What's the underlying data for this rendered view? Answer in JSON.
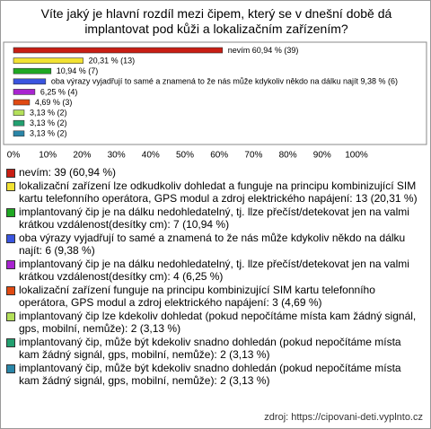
{
  "chart_data": {
    "type": "bar",
    "orientation": "horizontal",
    "title": "Víte jaký je hlavní rozdíl mezi čipem, který se v dnešní době dá implantovat pod kůži a lokalizačním zařízením?",
    "categories": [
      "nevím: 39 (60,94 %)",
      "lokalizační zařízení lze odkudkoliv dohledat a funguje na principu kombinizující SIM kartu telefonního operátora, GPS modul a zdroj elektrického napájení: 13 (20,31 %)",
      " implantovaný čip je na dálku nedohledatelný, tj. llze přečíst/detekovat jen na valmi krátkou vzdálenost(desítky cm): 7 (10,94 %)",
      "oba výrazy vyjadřují to samé a znamená to že nás může kdykoliv někdo na dálku najít: 6 (9,38 %)",
      "implantovaný čip je na dálku nedohledatelný, tj. llze přečíst/detekovat jen na valmi krátkou vzdálenost(desítky cm): 4 (6,25 %)",
      "lokalizační zařízení funguje na principu kombinizující SIM kartu telefonního operátora, GPS modul a zdroj elektrického napájení: 3 (4,69 %)",
      "implantovaný čip lze kdekoliv dohledat (pokud nepočítáme místa kam žádný signál, gps, mobilní, nemůže): 2 (3,13 %)",
      " implantovaný čip, může být kdekoliv snadno dohledán (pokud nepočítáme místa kam žádný signál, gps, mobilní, nemůže): 2 (3,13 %)",
      "implantovaný čip, může být kdekoliv snadno dohledán (pokud nepočítáme místa kam žádný signál, gps, mobilní, nemůže): 2 (3,13 %)"
    ],
    "values": [
      60.94,
      20.31,
      10.94,
      9.38,
      6.25,
      4.69,
      3.13,
      3.13,
      3.13
    ],
    "value_labels": [
      "nevím 60,94 % (39)",
      "20,31 % (13)",
      "10,94 % (7)",
      "oba výrazy vyjadřují to samé a znamená to že nás může kdykoliv někdo na dálku najít 9,38 % (6)",
      "6,25 % (4)",
      "4,69 % (3)",
      "3,13 % (2)",
      "3,13 % (2)",
      "3,13 % (2)"
    ],
    "colors": [
      "#c81e14",
      "#f2e232",
      "#1fa823",
      "#3a55e0",
      "#a824d0",
      "#e04a12",
      "#b4e05a",
      "#22a070",
      "#2a86a8"
    ],
    "xlim": [
      0,
      100
    ],
    "xticks": [
      {
        "value": 0,
        "label": "0%"
      },
      {
        "value": 10,
        "label": "10%"
      },
      {
        "value": 20,
        "label": "20%"
      },
      {
        "value": 30,
        "label": "30%"
      },
      {
        "value": 40,
        "label": "40%"
      },
      {
        "value": 50,
        "label": "50%"
      },
      {
        "value": 60,
        "label": "60%"
      },
      {
        "value": 70,
        "label": "70%"
      },
      {
        "value": 80,
        "label": "80%"
      },
      {
        "value": 90,
        "label": "90%"
      },
      {
        "value": 100,
        "label": "100%"
      }
    ],
    "grid": false,
    "source": "zdroj: https://cipovani-deti.vyplnto.cz"
  }
}
